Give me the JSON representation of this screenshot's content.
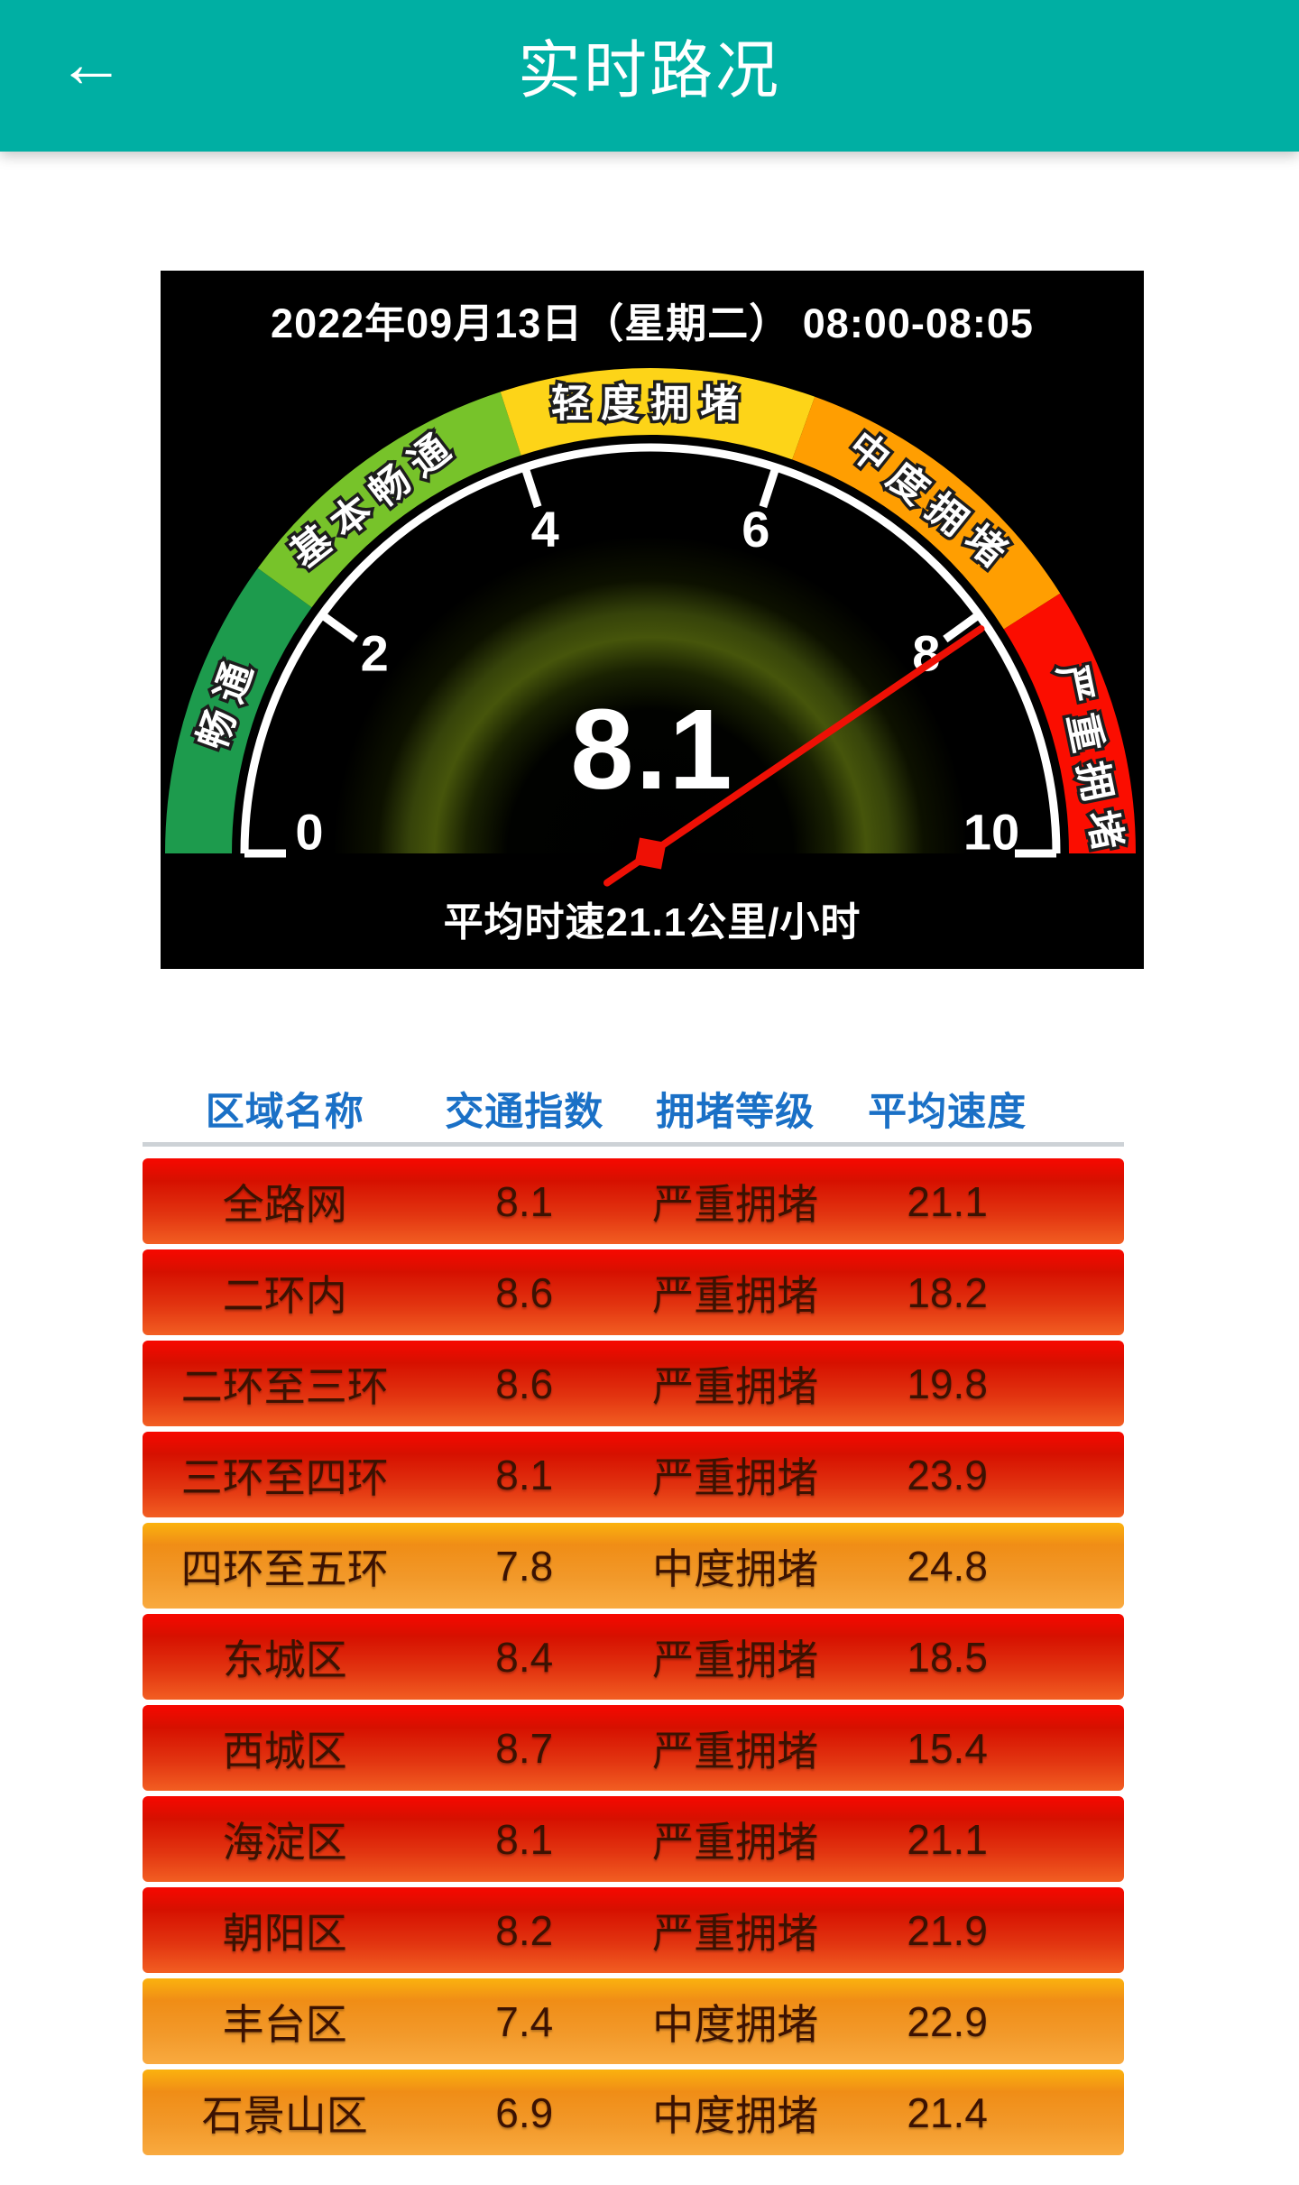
{
  "header": {
    "title": "实时路况",
    "back_glyph": "←"
  },
  "chart_data": {
    "type": "gauge",
    "date_line": "2022年09月13日（星期二） 08:00-08:05",
    "min": 0,
    "max": 10,
    "value": 8.1,
    "value_label": "8.1",
    "caption": "平均时速21.1公里/小时",
    "avg_speed_kmh": 21.1,
    "ticks": [
      0,
      2,
      4,
      6,
      8,
      10
    ],
    "segments": [
      {
        "label": "畅通",
        "from": 0,
        "to": 2,
        "label_at": 1.1,
        "color": "#1d9b4d"
      },
      {
        "label": "基本畅通",
        "from": 2,
        "to": 4,
        "label_at": 2.9,
        "color": "#77c32a"
      },
      {
        "label": "轻度拥堵",
        "from": 4,
        "to": 6.1,
        "label_at": 5.0,
        "color": "#fdd418"
      },
      {
        "label": "中度拥堵",
        "from": 6.1,
        "to": 8.2,
        "label_at": 7.15,
        "color": "#ff9e01"
      },
      {
        "label": "严重拥堵",
        "from": 8.2,
        "to": 10,
        "label_at": 9.35,
        "color": "#fb0d00"
      }
    ],
    "needle_color": "#ee1005",
    "dial_color": "#ffffff",
    "tick_label_color": "#ffffff"
  },
  "table": {
    "columns": [
      "区域名称",
      "交通指数",
      "拥堵等级",
      "平均速度"
    ],
    "rows": [
      {
        "region": "全路网",
        "index": "8.1",
        "level": "严重拥堵",
        "speed": "21.1",
        "severity": "severe"
      },
      {
        "region": "二环内",
        "index": "8.6",
        "level": "严重拥堵",
        "speed": "18.2",
        "severity": "severe"
      },
      {
        "region": "二环至三环",
        "index": "8.6",
        "level": "严重拥堵",
        "speed": "19.8",
        "severity": "severe"
      },
      {
        "region": "三环至四环",
        "index": "8.1",
        "level": "严重拥堵",
        "speed": "23.9",
        "severity": "severe"
      },
      {
        "region": "四环至五环",
        "index": "7.8",
        "level": "中度拥堵",
        "speed": "24.8",
        "severity": "moderate"
      },
      {
        "region": "东城区",
        "index": "8.4",
        "level": "严重拥堵",
        "speed": "18.5",
        "severity": "severe"
      },
      {
        "region": "西城区",
        "index": "8.7",
        "level": "严重拥堵",
        "speed": "15.4",
        "severity": "severe"
      },
      {
        "region": "海淀区",
        "index": "8.1",
        "level": "严重拥堵",
        "speed": "21.1",
        "severity": "severe"
      },
      {
        "region": "朝阳区",
        "index": "8.2",
        "level": "严重拥堵",
        "speed": "21.9",
        "severity": "severe"
      },
      {
        "region": "丰台区",
        "index": "7.4",
        "level": "中度拥堵",
        "speed": "22.9",
        "severity": "moderate"
      },
      {
        "region": "石景山区",
        "index": "6.9",
        "level": "中度拥堵",
        "speed": "21.4",
        "severity": "moderate"
      }
    ]
  },
  "colors": {
    "header_bg": "#00afa3",
    "column_header_blue": "#1a70c6",
    "row_text": "#3c1202",
    "severe_top": "#f70800",
    "severe_dark": "#d61000",
    "severe_mid": "#e23410",
    "severe_bottom": "#f25e22",
    "moderate_top": "#fbb20e",
    "moderate_dark": "#f08d16",
    "moderate_mid": "#f2992a",
    "moderate_bottom": "#f9aa3f"
  }
}
